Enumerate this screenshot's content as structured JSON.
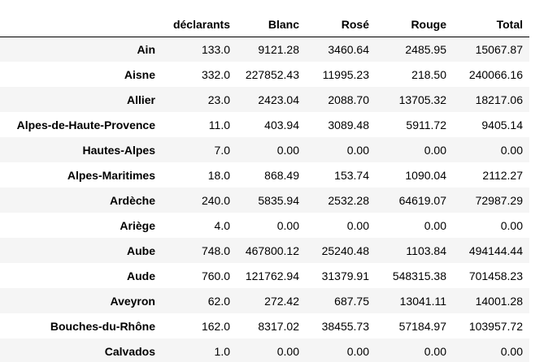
{
  "table": {
    "columns": [
      "déclarants",
      "Blanc",
      "Rosé",
      "Rouge",
      "Total"
    ],
    "rows": [
      {
        "index": "Ain",
        "values": [
          "133.0",
          "9121.28",
          "3460.64",
          "2485.95",
          "15067.87"
        ]
      },
      {
        "index": "Aisne",
        "values": [
          "332.0",
          "227852.43",
          "11995.23",
          "218.50",
          "240066.16"
        ]
      },
      {
        "index": "Allier",
        "values": [
          "23.0",
          "2423.04",
          "2088.70",
          "13705.32",
          "18217.06"
        ]
      },
      {
        "index": "Alpes-de-Haute-Provence",
        "values": [
          "11.0",
          "403.94",
          "3089.48",
          "5911.72",
          "9405.14"
        ]
      },
      {
        "index": "Hautes-Alpes",
        "values": [
          "7.0",
          "0.00",
          "0.00",
          "0.00",
          "0.00"
        ]
      },
      {
        "index": "Alpes-Maritimes",
        "values": [
          "18.0",
          "868.49",
          "153.74",
          "1090.04",
          "2112.27"
        ]
      },
      {
        "index": "Ardèche",
        "values": [
          "240.0",
          "5835.94",
          "2532.28",
          "64619.07",
          "72987.29"
        ]
      },
      {
        "index": "Ariège",
        "values": [
          "4.0",
          "0.00",
          "0.00",
          "0.00",
          "0.00"
        ]
      },
      {
        "index": "Aube",
        "values": [
          "748.0",
          "467800.12",
          "25240.48",
          "1103.84",
          "494144.44"
        ]
      },
      {
        "index": "Aude",
        "values": [
          "760.0",
          "121762.94",
          "31379.91",
          "548315.38",
          "701458.23"
        ]
      },
      {
        "index": "Aveyron",
        "values": [
          "62.0",
          "272.42",
          "687.75",
          "13041.11",
          "14001.28"
        ]
      },
      {
        "index": "Bouches-du-Rhône",
        "values": [
          "162.0",
          "8317.02",
          "38455.73",
          "57184.97",
          "103957.72"
        ]
      },
      {
        "index": "Calvados",
        "values": [
          "1.0",
          "0.00",
          "0.00",
          "0.00",
          "0.00"
        ]
      }
    ]
  }
}
